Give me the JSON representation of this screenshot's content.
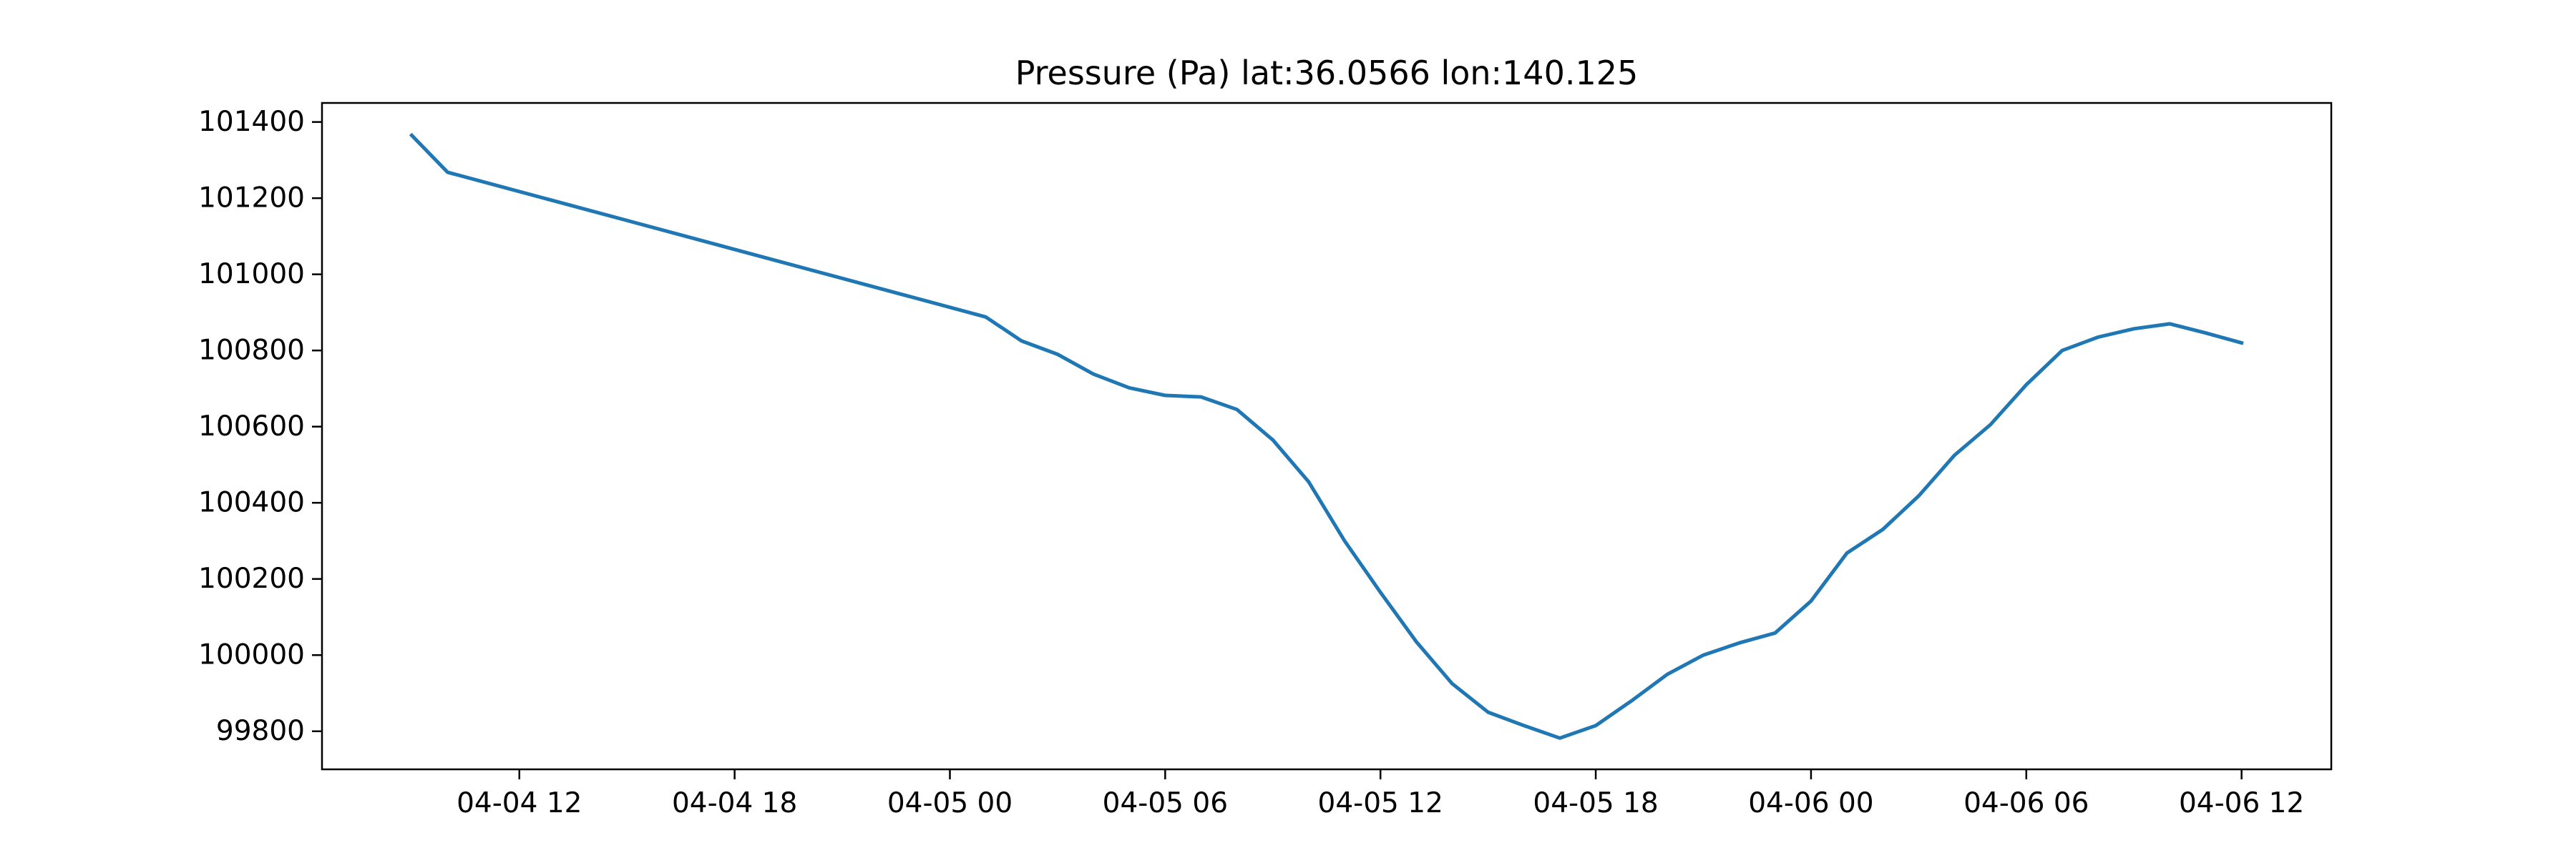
{
  "chart_data": {
    "type": "line",
    "title": "Pressure (Pa) lat:36.0566 lon:140.125",
    "xlabel": "",
    "ylabel": "",
    "x_ticks": [
      "04-04 12",
      "04-04 18",
      "04-05 00",
      "04-05 06",
      "04-05 12",
      "04-05 18",
      "04-06 00",
      "04-06 06",
      "04-06 12"
    ],
    "y_ticks": [
      "99800",
      "100000",
      "100200",
      "100400",
      "100600",
      "100800",
      "101000",
      "101200",
      "101400"
    ],
    "xlim": [
      "2023-04-04 06:30",
      "2023-04-06 14:30"
    ],
    "ylim": [
      99700,
      101450
    ],
    "grid": false,
    "color": "#1f77b4",
    "series": [
      {
        "x": [
          "2023-04-04 09:00",
          "2023-04-04 10:00",
          "2023-04-05 01:00",
          "2023-04-05 02:00",
          "2023-04-05 03:00",
          "2023-04-05 04:00",
          "2023-04-05 05:00",
          "2023-04-05 06:00",
          "2023-04-05 07:00",
          "2023-04-05 08:00",
          "2023-04-05 09:00",
          "2023-04-05 10:00",
          "2023-04-05 11:00",
          "2023-04-05 12:00",
          "2023-04-05 13:00",
          "2023-04-05 14:00",
          "2023-04-05 15:00",
          "2023-04-05 16:00",
          "2023-04-05 17:00",
          "2023-04-05 18:00",
          "2023-04-05 19:00",
          "2023-04-05 20:00",
          "2023-04-05 21:00",
          "2023-04-05 22:00",
          "2023-04-05 23:00",
          "2023-04-06 00:00",
          "2023-04-06 01:00",
          "2023-04-06 02:00",
          "2023-04-06 03:00",
          "2023-04-06 04:00",
          "2023-04-06 05:00",
          "2023-04-06 06:00",
          "2023-04-06 07:00",
          "2023-04-06 08:00",
          "2023-04-06 09:00",
          "2023-04-06 10:00",
          "2023-04-06 11:00",
          "2023-04-06 12:00"
        ],
        "values": [
          101365,
          101268,
          100888,
          100825,
          100790,
          100738,
          100702,
          100682,
          100678,
          100645,
          100565,
          100455,
          100300,
          100165,
          100035,
          99925,
          99850,
          99815,
          99782,
          99815,
          99880,
          99950,
          100000,
          100032,
          100058,
          100142,
          100268,
          100330,
          100418,
          100525,
          100605,
          100710,
          100800,
          100835,
          100857,
          100870,
          100846,
          100820
        ]
      }
    ]
  }
}
